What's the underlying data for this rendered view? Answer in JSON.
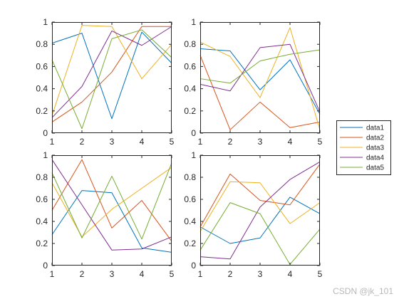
{
  "watermark": "CSDN @jk_101",
  "colors": {
    "data1": "#0072BD",
    "data2": "#D95319",
    "data3": "#EDB120",
    "data4": "#7E2F8E",
    "data5": "#77AC30",
    "axis": "#262626",
    "grid": "none",
    "background": "#ffffff"
  },
  "legend": {
    "placement": "right-outside",
    "entries": [
      "data1",
      "data2",
      "data3",
      "data4",
      "data5"
    ]
  },
  "chart_data": [
    {
      "type": "line",
      "title": "",
      "xlabel": "",
      "ylabel": "",
      "x": [
        1,
        2,
        3,
        4,
        5
      ],
      "xlim": [
        1,
        5
      ],
      "ylim": [
        0,
        1
      ],
      "xticks": [
        "1",
        "2",
        "3",
        "4",
        "5"
      ],
      "yticks": [
        "0",
        "0.2",
        "0.4",
        "0.6",
        "0.8",
        "1"
      ],
      "grid": false,
      "series": [
        {
          "name": "data1",
          "values": [
            0.81,
            0.9,
            0.13,
            0.91,
            0.63
          ]
        },
        {
          "name": "data2",
          "values": [
            0.1,
            0.28,
            0.55,
            0.96,
            0.96
          ]
        },
        {
          "name": "data3",
          "values": [
            0.16,
            0.97,
            0.96,
            0.49,
            0.8
          ]
        },
        {
          "name": "data4",
          "values": [
            0.14,
            0.42,
            0.92,
            0.79,
            0.96
          ]
        },
        {
          "name": "data5",
          "values": [
            0.66,
            0.04,
            0.85,
            0.93,
            0.68
          ]
        }
      ]
    },
    {
      "type": "line",
      "title": "",
      "xlabel": "",
      "ylabel": "",
      "x": [
        1,
        2,
        3,
        4,
        5
      ],
      "xlim": [
        1,
        5
      ],
      "ylim": [
        0,
        1
      ],
      "xticks": [
        "1",
        "2",
        "3",
        "4",
        "5"
      ],
      "yticks": [
        "0",
        "0.2",
        "0.4",
        "0.6",
        "0.8",
        "1"
      ],
      "grid": false,
      "series": [
        {
          "name": "data1",
          "values": [
            0.76,
            0.74,
            0.39,
            0.66,
            0.17
          ]
        },
        {
          "name": "data2",
          "values": [
            0.7,
            0.03,
            0.28,
            0.05,
            0.1
          ]
        },
        {
          "name": "data3",
          "values": [
            0.82,
            0.69,
            0.32,
            0.95,
            0.03
          ]
        },
        {
          "name": "data4",
          "values": [
            0.44,
            0.38,
            0.77,
            0.8,
            0.19
          ]
        },
        {
          "name": "data5",
          "values": [
            0.49,
            0.45,
            0.65,
            0.71,
            0.75
          ]
        }
      ]
    },
    {
      "type": "line",
      "title": "",
      "xlabel": "",
      "ylabel": "",
      "x": [
        1,
        2,
        3,
        4,
        5
      ],
      "xlim": [
        1,
        5
      ],
      "ylim": [
        0,
        1
      ],
      "xticks": [
        "1",
        "2",
        "3",
        "4",
        "5"
      ],
      "yticks": [
        "0",
        "0.2",
        "0.4",
        "0.6",
        "0.8",
        "1"
      ],
      "grid": false,
      "series": [
        {
          "name": "data1",
          "values": [
            0.28,
            0.68,
            0.66,
            0.16,
            0.12
          ]
        },
        {
          "name": "data2",
          "values": [
            0.5,
            0.96,
            0.34,
            0.59,
            0.22
          ]
        },
        {
          "name": "data3",
          "values": [
            0.75,
            0.26,
            0.51,
            0.7,
            0.89
          ]
        },
        {
          "name": "data4",
          "values": [
            0.96,
            0.55,
            0.14,
            0.15,
            0.26
          ]
        },
        {
          "name": "data5",
          "values": [
            0.84,
            0.25,
            0.81,
            0.24,
            0.93
          ]
        }
      ]
    },
    {
      "type": "line",
      "title": "",
      "xlabel": "",
      "ylabel": "",
      "x": [
        1,
        2,
        3,
        4,
        5
      ],
      "xlim": [
        1,
        5
      ],
      "ylim": [
        0,
        1
      ],
      "xticks": [
        "1",
        "2",
        "3",
        "4",
        "5"
      ],
      "yticks": [
        "0",
        "0.2",
        "0.4",
        "0.6",
        "0.8",
        "1"
      ],
      "grid": false,
      "series": [
        {
          "name": "data1",
          "values": [
            0.35,
            0.2,
            0.25,
            0.62,
            0.47
          ]
        },
        {
          "name": "data2",
          "values": [
            0.35,
            0.83,
            0.59,
            0.55,
            0.92
          ]
        },
        {
          "name": "data3",
          "values": [
            0.31,
            0.76,
            0.75,
            0.38,
            0.57
          ]
        },
        {
          "name": "data4",
          "values": [
            0.08,
            0.06,
            0.53,
            0.78,
            0.94
          ]
        },
        {
          "name": "data5",
          "values": [
            0.14,
            0.57,
            0.47,
            0.01,
            0.33
          ]
        }
      ]
    }
  ]
}
